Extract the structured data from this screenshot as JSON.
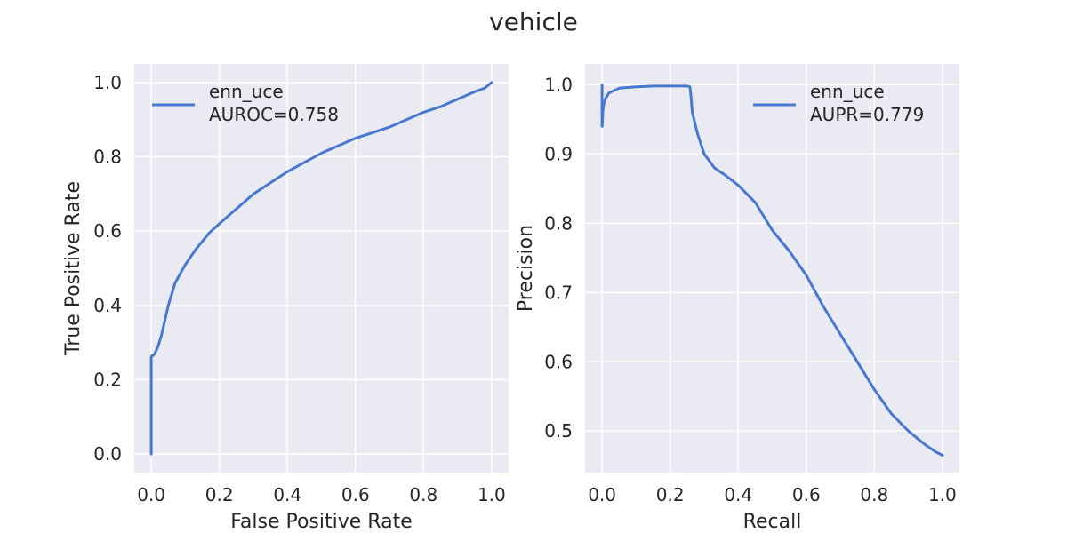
{
  "figure": {
    "title": "vehicle"
  },
  "style": {
    "background": "#eaeaf2",
    "grid": "#ffffff",
    "line": "#4878cf",
    "text": "#262626"
  },
  "chart_data": [
    {
      "type": "line",
      "title": "",
      "xlabel": "False Positive Rate",
      "ylabel": "True Positive Rate",
      "xlim": [
        -0.05,
        1.05
      ],
      "ylim": [
        -0.05,
        1.05
      ],
      "xticks": [
        0.0,
        0.2,
        0.4,
        0.6,
        0.8,
        1.0
      ],
      "xtick_labels": [
        "0.0",
        "0.2",
        "0.4",
        "0.6",
        "0.8",
        "1.0"
      ],
      "yticks": [
        0.0,
        0.2,
        0.4,
        0.6,
        0.8,
        1.0
      ],
      "ytick_labels": [
        "0.0",
        "0.2",
        "0.4",
        "0.6",
        "0.8",
        "1.0"
      ],
      "grid": true,
      "legend_position": "upper left",
      "series": [
        {
          "name": "enn_uce",
          "legend_label": "enn_uce\nAUROC=0.758",
          "x": [
            0.0,
            0.0,
            0.002,
            0.005,
            0.01,
            0.02,
            0.03,
            0.05,
            0.07,
            0.1,
            0.13,
            0.17,
            0.2,
            0.25,
            0.3,
            0.35,
            0.4,
            0.45,
            0.5,
            0.55,
            0.6,
            0.65,
            0.7,
            0.75,
            0.8,
            0.85,
            0.9,
            0.95,
            0.98,
            1.0
          ],
          "y": [
            0.0,
            0.26,
            0.265,
            0.265,
            0.27,
            0.29,
            0.32,
            0.4,
            0.46,
            0.51,
            0.55,
            0.595,
            0.62,
            0.66,
            0.7,
            0.73,
            0.76,
            0.785,
            0.81,
            0.83,
            0.85,
            0.865,
            0.88,
            0.9,
            0.92,
            0.935,
            0.955,
            0.975,
            0.985,
            1.0
          ]
        }
      ]
    },
    {
      "type": "line",
      "title": "",
      "xlabel": "Recall",
      "ylabel": "Precision",
      "xlim": [
        -0.05,
        1.05
      ],
      "ylim": [
        0.44,
        1.03
      ],
      "xticks": [
        0.0,
        0.2,
        0.4,
        0.6,
        0.8,
        1.0
      ],
      "xtick_labels": [
        "0.0",
        "0.2",
        "0.4",
        "0.6",
        "0.8",
        "1.0"
      ],
      "yticks": [
        0.5,
        0.6,
        0.7,
        0.8,
        0.9,
        1.0
      ],
      "ytick_labels": [
        "0.5",
        "0.6",
        "0.7",
        "0.8",
        "0.9",
        "1.0"
      ],
      "grid": true,
      "legend_position": "upper right",
      "series": [
        {
          "name": "enn_uce",
          "legend_label": "enn_uce\nAUPR=0.779",
          "x": [
            0.0,
            0.0,
            0.001,
            0.002,
            0.004,
            0.01,
            0.02,
            0.05,
            0.1,
            0.15,
            0.2,
            0.25,
            0.258,
            0.26,
            0.265,
            0.28,
            0.3,
            0.33,
            0.36,
            0.4,
            0.45,
            0.5,
            0.55,
            0.6,
            0.65,
            0.7,
            0.75,
            0.8,
            0.85,
            0.9,
            0.95,
            0.98,
            1.0
          ],
          "y": [
            1.0,
            0.94,
            0.945,
            0.96,
            0.97,
            0.98,
            0.988,
            0.995,
            0.997,
            0.998,
            0.998,
            0.998,
            0.997,
            0.99,
            0.96,
            0.93,
            0.9,
            0.88,
            0.87,
            0.855,
            0.83,
            0.79,
            0.76,
            0.725,
            0.68,
            0.64,
            0.6,
            0.56,
            0.525,
            0.5,
            0.48,
            0.47,
            0.465
          ]
        }
      ]
    }
  ]
}
